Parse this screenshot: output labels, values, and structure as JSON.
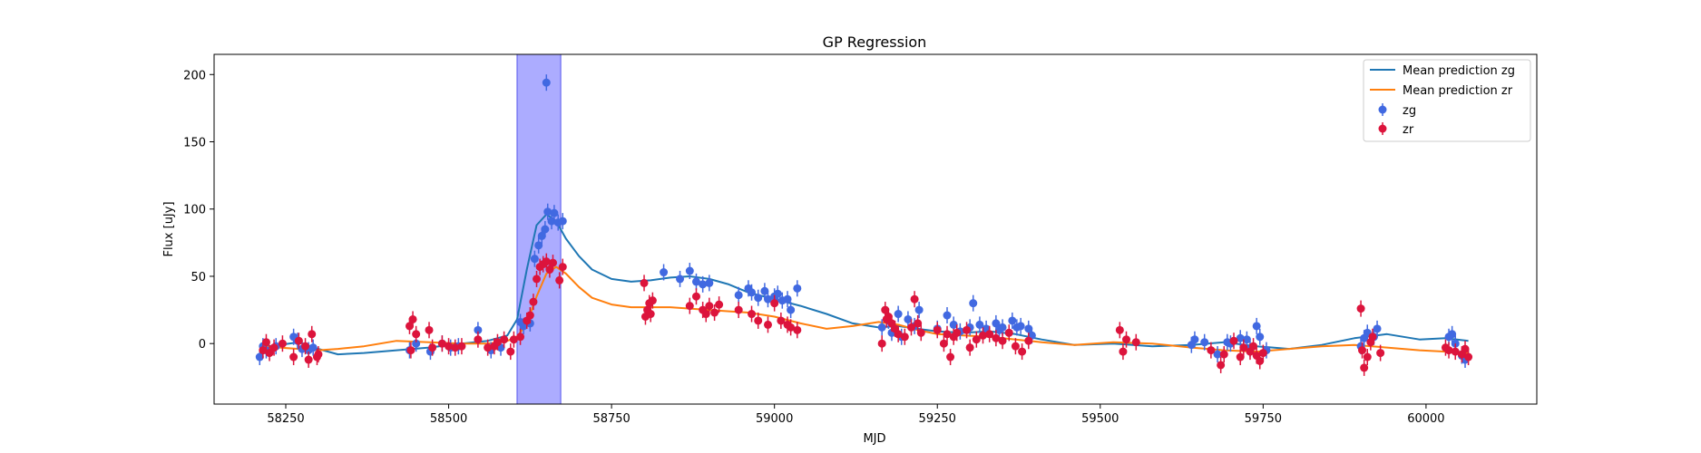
{
  "chart_data": {
    "type": "scatter",
    "title": "GP Regression",
    "xlabel": "MJD",
    "ylabel": "Flux [uJy]",
    "xlim": [
      58140,
      60170
    ],
    "ylim": [
      -45,
      215
    ],
    "xticks": [
      58250,
      58500,
      58750,
      59000,
      59250,
      59500,
      59750,
      60000
    ],
    "yticks": [
      0,
      50,
      100,
      150,
      200
    ],
    "grid": false,
    "legend_position": "top-right",
    "highlight_span": {
      "x_start": 58605,
      "x_end": 58672,
      "color": "#a8a8ff"
    },
    "curves": [
      {
        "name": "Mean prediction zg",
        "color": "#1f77b4",
        "x": [
          58210,
          58240,
          58270,
          58300,
          58330,
          58370,
          58420,
          58470,
          58520,
          58560,
          58590,
          58605,
          58620,
          58635,
          58650,
          58665,
          58680,
          58700,
          58720,
          58750,
          58780,
          58810,
          58840,
          58870,
          58900,
          58930,
          58960,
          59000,
          59040,
          59080,
          59120,
          59160,
          59190,
          59220,
          59250,
          59290,
          59330,
          59370,
          59410,
          59460,
          59520,
          59580,
          59640,
          59690,
          59740,
          59790,
          59840,
          59890,
          59940,
          59990,
          60030,
          60065
        ],
        "y": [
          -3,
          -1,
          1,
          -4,
          -8,
          -7,
          -5,
          -3,
          0,
          2,
          6,
          18,
          55,
          88,
          96,
          91,
          78,
          65,
          55,
          48,
          46,
          47,
          49,
          50,
          48,
          44,
          38,
          33,
          28,
          22,
          15,
          12,
          13,
          11,
          9,
          8,
          9,
          7,
          3,
          -1,
          0,
          -2,
          -1,
          1,
          -2,
          -4,
          -1,
          4,
          7,
          3,
          4,
          2
        ]
      },
      {
        "name": "Mean prediction zr",
        "color": "#ff7f0e",
        "x": [
          58210,
          58240,
          58270,
          58300,
          58330,
          58370,
          58420,
          58470,
          58520,
          58560,
          58590,
          58605,
          58620,
          58635,
          58650,
          58665,
          58680,
          58700,
          58720,
          58750,
          58780,
          58810,
          58840,
          58870,
          58900,
          58930,
          58960,
          59000,
          59040,
          59080,
          59120,
          59160,
          59190,
          59220,
          59250,
          59290,
          59330,
          59370,
          59410,
          59460,
          59520,
          59580,
          59640,
          59690,
          59740,
          59790,
          59840,
          59890,
          59940,
          59990,
          60030,
          60065
        ],
        "y": [
          -2,
          -3,
          -4,
          -5,
          -4,
          -2,
          2,
          1,
          0,
          0,
          2,
          5,
          15,
          35,
          52,
          57,
          52,
          42,
          34,
          29,
          27,
          27,
          27,
          26,
          25,
          24,
          23,
          20,
          15,
          11,
          13,
          16,
          14,
          10,
          7,
          6,
          5,
          3,
          1,
          -1,
          1,
          0,
          -3,
          -5,
          -6,
          -4,
          -2,
          -1,
          -3,
          -5,
          -6,
          -7
        ]
      }
    ],
    "series": [
      {
        "name": "zg",
        "color": "#4169e1",
        "x": [
          58210,
          58215,
          58220,
          58235,
          58262,
          58268,
          58275,
          58285,
          58292,
          58440,
          58450,
          58472,
          58490,
          58503,
          58515,
          58545,
          58565,
          58580,
          58610,
          58615,
          58625,
          58632,
          58638,
          58643,
          58648,
          58652,
          58658,
          58662,
          58668,
          58675,
          58650,
          58830,
          58855,
          58870,
          58880,
          58890,
          58900,
          58945,
          58960,
          58965,
          58975,
          58985,
          58990,
          59000,
          59005,
          59012,
          59020,
          59025,
          59035,
          59165,
          59175,
          59180,
          59190,
          59195,
          59205,
          59215,
          59222,
          59250,
          59265,
          59275,
          59285,
          59300,
          59305,
          59315,
          59325,
          59340,
          59345,
          59350,
          59360,
          59365,
          59372,
          59378,
          59390,
          59395,
          59640,
          59645,
          59660,
          59680,
          59695,
          59700,
          59715,
          59725,
          59730,
          59740,
          59745,
          59755,
          59900,
          59905,
          59910,
          59920,
          59925,
          60035,
          60040,
          60045,
          60055,
          60060
        ],
        "y": [
          -10,
          -2,
          -5,
          -2,
          5,
          2,
          -4,
          -5,
          -3,
          -5,
          0,
          -6,
          0,
          -3,
          -2,
          10,
          -5,
          -3,
          16,
          13,
          15,
          63,
          73,
          80,
          85,
          98,
          91,
          97,
          90,
          91,
          194,
          53,
          48,
          54,
          46,
          44,
          45,
          36,
          41,
          38,
          34,
          39,
          33,
          35,
          37,
          32,
          33,
          25,
          41,
          12,
          17,
          8,
          22,
          5,
          18,
          13,
          25,
          11,
          21,
          14,
          9,
          12,
          30,
          14,
          11,
          15,
          10,
          12,
          8,
          17,
          12,
          13,
          11,
          6,
          -1,
          3,
          1,
          -8,
          1,
          0,
          4,
          3,
          -4,
          13,
          5,
          -5,
          -2,
          4,
          8,
          5,
          11,
          5,
          7,
          0,
          -9,
          -12
        ]
      },
      {
        "name": "zr",
        "color": "#dc143c",
        "x": [
          58215,
          58220,
          58225,
          58232,
          58245,
          58262,
          58270,
          58280,
          58285,
          58290,
          58298,
          58300,
          58440,
          58442,
          58445,
          58450,
          58470,
          58475,
          58490,
          58500,
          58510,
          58520,
          58545,
          58560,
          58570,
          58575,
          58585,
          58595,
          58600,
          58610,
          58620,
          58625,
          58630,
          58635,
          58640,
          58645,
          58650,
          58655,
          58660,
          58670,
          58675,
          58800,
          58802,
          58805,
          58808,
          58810,
          58813,
          58870,
          58880,
          58890,
          58895,
          58900,
          58908,
          58915,
          58945,
          58965,
          58975,
          58990,
          59000,
          59010,
          59020,
          59025,
          59035,
          59165,
          59170,
          59172,
          59175,
          59180,
          59185,
          59190,
          59200,
          59210,
          59215,
          59220,
          59225,
          59250,
          59260,
          59265,
          59270,
          59275,
          59280,
          59295,
          59300,
          59310,
          59320,
          59330,
          59340,
          59350,
          59360,
          59370,
          59380,
          59390,
          59530,
          59535,
          59540,
          59555,
          59670,
          59685,
          59690,
          59705,
          59715,
          59720,
          59730,
          59735,
          59740,
          59745,
          59750,
          59900,
          59902,
          59905,
          59910,
          59915,
          59918,
          59930,
          60030,
          60035,
          60045,
          60055,
          60060,
          60065
        ],
        "y": [
          -5,
          1,
          -7,
          -3,
          0,
          -10,
          2,
          -2,
          -12,
          7,
          -10,
          -8,
          13,
          -5,
          18,
          7,
          10,
          -3,
          0,
          -2,
          -3,
          -2,
          3,
          -3,
          -2,
          1,
          3,
          -6,
          3,
          5,
          17,
          21,
          31,
          48,
          57,
          59,
          61,
          55,
          60,
          47,
          57,
          45,
          20,
          25,
          30,
          22,
          32,
          28,
          35,
          25,
          22,
          28,
          23,
          29,
          25,
          22,
          17,
          14,
          30,
          17,
          14,
          12,
          10,
          0,
          25,
          18,
          20,
          15,
          11,
          7,
          5,
          12,
          33,
          15,
          8,
          10,
          0,
          7,
          -10,
          5,
          8,
          10,
          -3,
          3,
          6,
          7,
          4,
          2,
          8,
          -2,
          -6,
          2,
          10,
          -6,
          3,
          1,
          -5,
          -16,
          -8,
          2,
          -10,
          -3,
          -6,
          -2,
          -9,
          -13,
          -7,
          26,
          -5,
          -18,
          -10,
          1,
          5,
          -7,
          -3,
          -5,
          -6,
          -8,
          -4,
          -10
        ]
      }
    ]
  }
}
